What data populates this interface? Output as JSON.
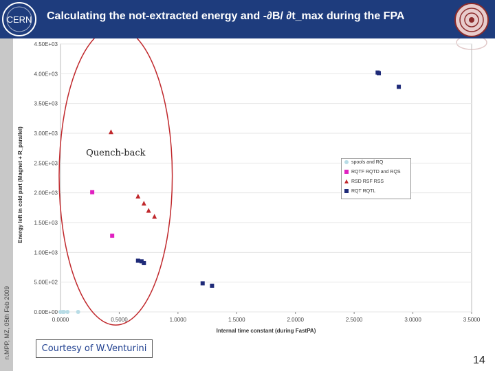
{
  "slide": {
    "title": "Calculating the not-extracted energy and  -∂B/ ∂t_max during the FPA",
    "side_label": "n.MPP, MZ, 05th Feb 2009",
    "page_number": "14",
    "courtesy": "Courtesy of W.Venturini",
    "logo_text": "CERN"
  },
  "colors": {
    "header": "#1e3c7d",
    "sidebar": "#c8c8c8",
    "ellipse": "#c0282c"
  },
  "chart_data": {
    "type": "scatter",
    "xlabel": "Internal time constant (during FastPA)",
    "ylabel": "Energy left in cold part (Magnet + R_parallel)",
    "xlim": [
      0,
      3.5
    ],
    "ylim": [
      0,
      4500
    ],
    "xticks": [
      "0.0000",
      "0.5000",
      "1.0000",
      "1.5000",
      "2.0000",
      "2.5000",
      "3.0000",
      "3.5000"
    ],
    "yticks": [
      "0.00E+00",
      "5.00E+02",
      "1.00E+03",
      "1.50E+03",
      "2.00E+03",
      "2.50E+03",
      "3.00E+03",
      "3.50E+03",
      "4.00E+03",
      "4.50E+03"
    ],
    "grid": "horizontal",
    "legend_position": "right",
    "annotation": "Quench-back",
    "series": [
      {
        "name": "spools and RQ",
        "color": "#b8dce6",
        "marker": "circle",
        "points": [
          [
            0.0,
            0
          ],
          [
            0.02,
            0
          ],
          [
            0.03,
            0
          ],
          [
            0.06,
            0
          ],
          [
            0.15,
            0
          ]
        ]
      },
      {
        "name": "RQTF RQTD and RQS",
        "color": "#e020c0",
        "marker": "square",
        "points": [
          [
            0.27,
            2010
          ],
          [
            0.44,
            1280
          ]
        ]
      },
      {
        "name": "RSD RSF RSS",
        "color": "#c0282c",
        "marker": "triangle",
        "points": [
          [
            0.43,
            3020
          ],
          [
            0.66,
            1940
          ],
          [
            0.71,
            1820
          ],
          [
            0.75,
            1700
          ],
          [
            0.8,
            1600
          ]
        ]
      },
      {
        "name": "RQT RQTL",
        "color": "#1e2a78",
        "marker": "square",
        "points": [
          [
            0.66,
            860
          ],
          [
            0.69,
            850
          ],
          [
            0.71,
            820
          ],
          [
            1.21,
            480
          ],
          [
            1.29,
            440
          ],
          [
            2.7,
            4020
          ],
          [
            2.71,
            4010
          ],
          [
            2.88,
            3780
          ]
        ]
      }
    ]
  }
}
